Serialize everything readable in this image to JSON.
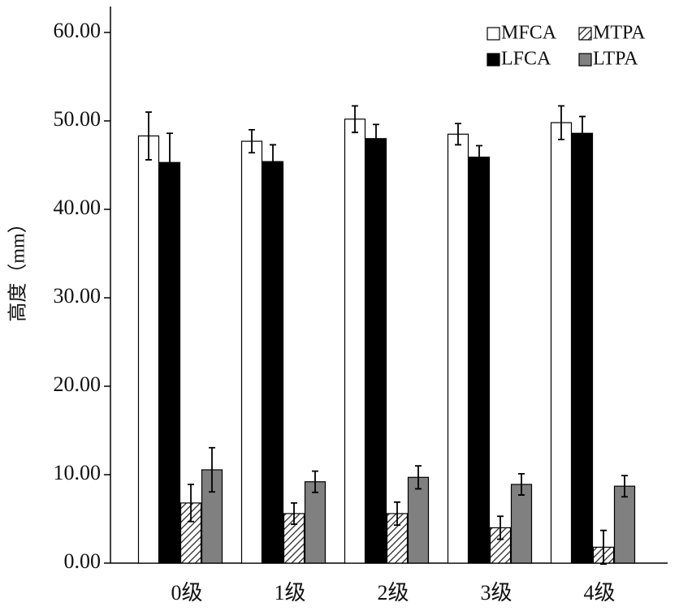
{
  "chart_data": {
    "type": "bar",
    "y_label": "高度（mm）",
    "categories": [
      "0级",
      "1级",
      "2级",
      "3级",
      "4级"
    ],
    "series": [
      {
        "name": "MFCA",
        "color": "#ffffff",
        "pattern": "solid",
        "values": [
          48.3,
          47.7,
          50.2,
          48.5,
          49.8
        ],
        "errors": [
          2.7,
          1.3,
          1.5,
          1.2,
          1.9
        ]
      },
      {
        "name": "LFCA",
        "color": "#000000",
        "pattern": "solid",
        "values": [
          45.3,
          45.4,
          48.0,
          45.9,
          48.6
        ],
        "errors": [
          3.3,
          1.9,
          1.6,
          1.3,
          1.9
        ]
      },
      {
        "name": "MTPA",
        "color": "#ffffff",
        "pattern": "hatch",
        "values": [
          6.8,
          5.6,
          5.6,
          4.0,
          1.8
        ],
        "errors": [
          2.1,
          1.2,
          1.3,
          1.3,
          1.9
        ]
      },
      {
        "name": "LTPA",
        "color": "#808080",
        "pattern": "solid",
        "values": [
          10.55,
          9.2,
          9.7,
          8.9,
          8.7
        ],
        "errors": [
          2.5,
          1.2,
          1.3,
          1.2,
          1.2
        ]
      }
    ],
    "ylim": [
      0,
      60
    ],
    "yticks": [
      {
        "value": 0,
        "label": "0.00"
      },
      {
        "value": 10,
        "label": "10.00"
      },
      {
        "value": 20,
        "label": "20.00"
      },
      {
        "value": 30,
        "label": "30.00"
      },
      {
        "value": 40,
        "label": "40.00"
      },
      {
        "value": 50,
        "label": "50.00"
      },
      {
        "value": 60,
        "label": "60.00"
      }
    ],
    "legend": "top-right"
  }
}
